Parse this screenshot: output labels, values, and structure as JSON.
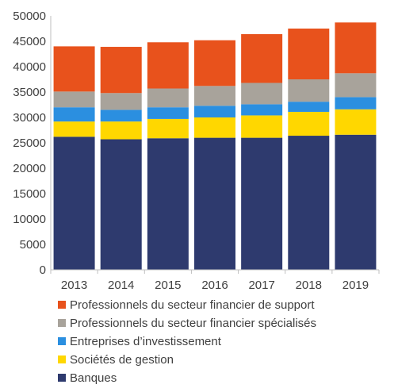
{
  "chart_data": {
    "type": "bar",
    "stacked": true,
    "categories": [
      "2013",
      "2014",
      "2015",
      "2016",
      "2017",
      "2018",
      "2019"
    ],
    "series": [
      {
        "name": "Banques",
        "color": "#2e3a6e",
        "values": [
          26200,
          25700,
          25900,
          26000,
          26000,
          26400,
          26600
        ]
      },
      {
        "name": "Sociétés de gestion",
        "color": "#ffd700",
        "values": [
          3000,
          3500,
          3800,
          4000,
          4400,
          4700,
          5000
        ]
      },
      {
        "name": "Entreprises d’investissement",
        "color": "#2b8fe0",
        "values": [
          2800,
          2300,
          2300,
          2300,
          2200,
          2000,
          2400
        ]
      },
      {
        "name": "Professionnels du secteur financier spécialisés",
        "color": "#a8a39b",
        "values": [
          3100,
          3300,
          3700,
          3900,
          4200,
          4400,
          4700
        ]
      },
      {
        "name": "Professionnels du secteur financier de support",
        "color": "#e8521c",
        "values": [
          8900,
          9100,
          9100,
          9000,
          9600,
          10000,
          10000
        ]
      }
    ],
    "yticks": [
      "0",
      "5000",
      "10000",
      "15000",
      "20000",
      "25000",
      "30000",
      "35000",
      "40000",
      "45000",
      "50000"
    ],
    "ylim": [
      0,
      50000
    ],
    "grid": false,
    "legend_position": "bottom",
    "legend_order": [
      4,
      3,
      2,
      1,
      0
    ]
  }
}
